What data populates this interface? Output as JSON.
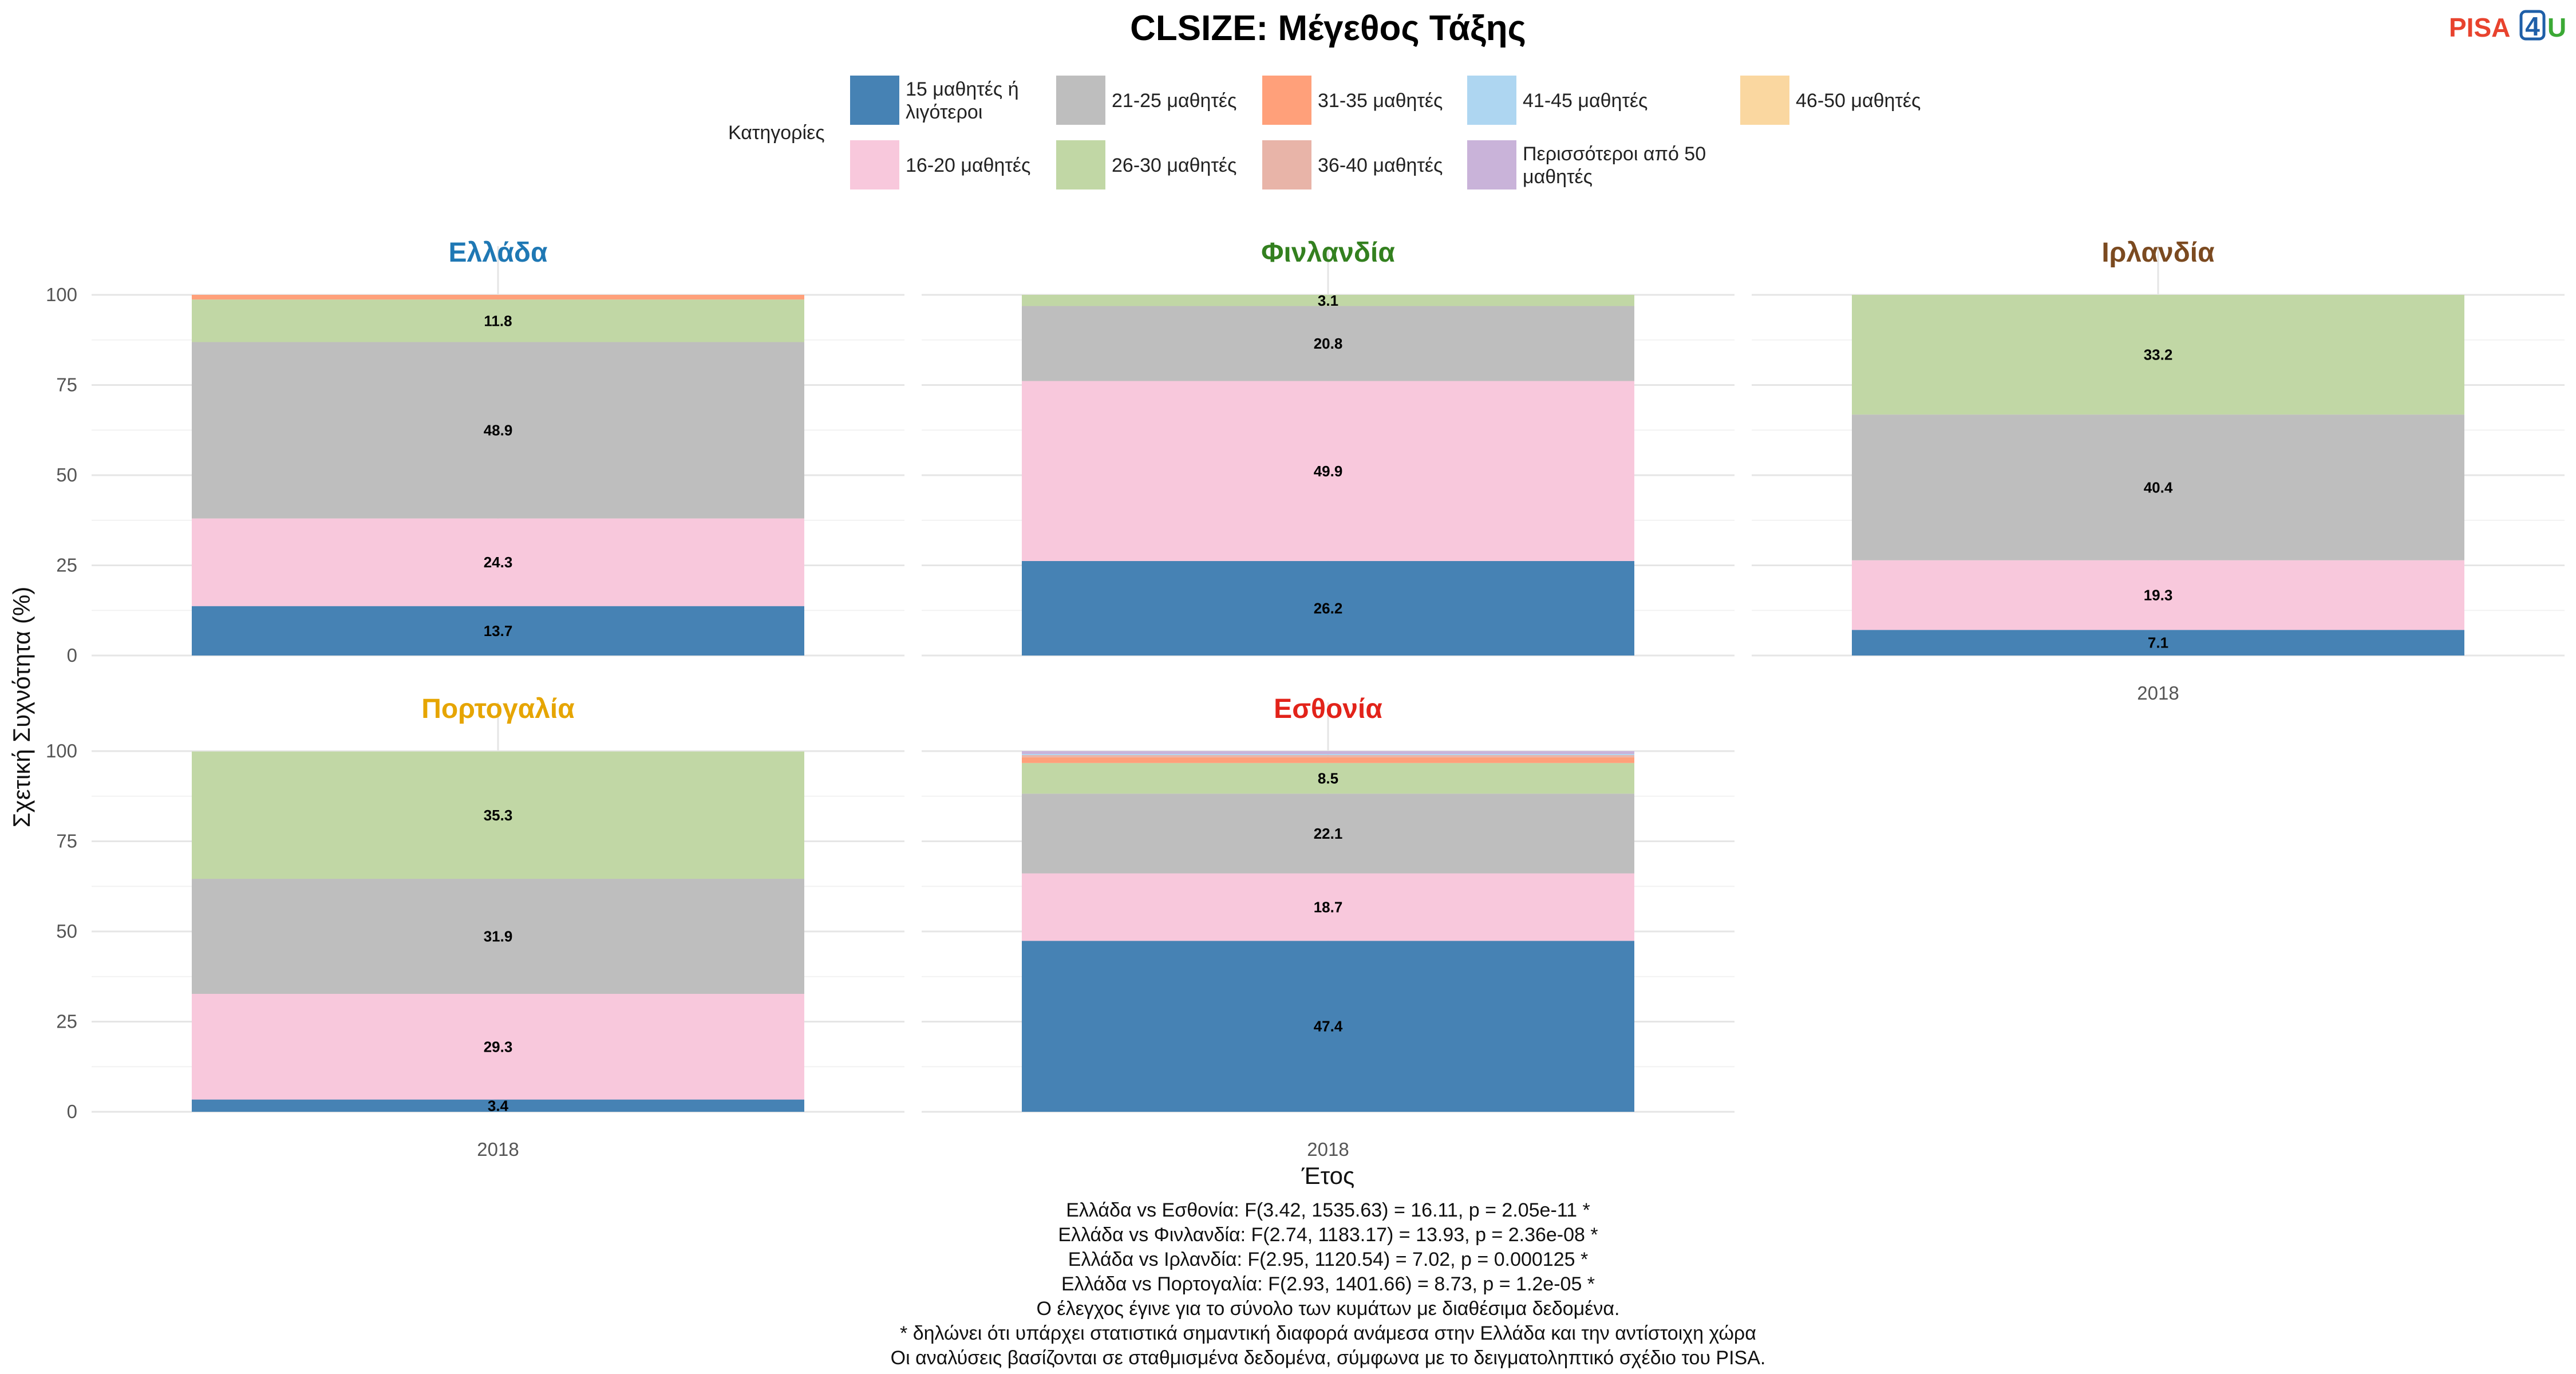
{
  "chart_data": {
    "type": "bar",
    "stacked": true,
    "title": "CLSIZE: Μέγεθος Τάξης",
    "logo": {
      "part1": "PISA",
      "part2": "4",
      "part3": "U"
    },
    "xlabel": "Έτος",
    "ylabel": "Σχετική Συχνότητα (%)",
    "ylim": [
      0,
      100
    ],
    "yticks": [
      0,
      25,
      50,
      75,
      100
    ],
    "legend": {
      "title": "Κατηγορίες",
      "placement": "top",
      "items": [
        {
          "label": "15 μαθητές ή λιγότεροι",
          "color": "#4682B4"
        },
        {
          "label": "16-20 μαθητές",
          "color": "#F8C8DC"
        },
        {
          "label": "21-25 μαθητές",
          "color": "#BEBEBE"
        },
        {
          "label": "26-30 μαθητές",
          "color": "#C1D7A5"
        },
        {
          "label": "31-35 μαθητές",
          "color": "#FFA07A"
        },
        {
          "label": "36-40 μαθητές",
          "color": "#E8B4A8"
        },
        {
          "label": "41-45 μαθητές",
          "color": "#AED6F1"
        },
        {
          "label": "Περισσότεροι από 50 μαθητές",
          "color": "#C9B3D9"
        },
        {
          "label": "46-50 μαθητές",
          "color": "#FAD7A0"
        }
      ]
    },
    "facets": [
      {
        "name": "Ελλάδα",
        "color": "#1F78B4",
        "x": [
          "2018"
        ],
        "segments": [
          {
            "category": "15 μαθητές ή λιγότεροι",
            "value": 13.7,
            "label": "13.7"
          },
          {
            "category": "16-20 μαθητές",
            "value": 24.3,
            "label": "24.3"
          },
          {
            "category": "21-25 μαθητές",
            "value": 48.9,
            "label": "48.9"
          },
          {
            "category": "26-30 μαθητές",
            "value": 11.8,
            "label": "11.8"
          },
          {
            "category": "31-35 μαθητές",
            "value": 1.3,
            "label": ""
          }
        ]
      },
      {
        "name": "Φινλανδία",
        "color": "#33801F",
        "x": [
          "2018"
        ],
        "segments": [
          {
            "category": "15 μαθητές ή λιγότεροι",
            "value": 26.2,
            "label": "26.2"
          },
          {
            "category": "16-20 μαθητές",
            "value": 49.9,
            "label": "49.9"
          },
          {
            "category": "21-25 μαθητές",
            "value": 20.8,
            "label": "20.8"
          },
          {
            "category": "26-30 μαθητές",
            "value": 3.1,
            "label": "3.1"
          }
        ]
      },
      {
        "name": "Ιρλανδία",
        "color": "#7B4A20",
        "x": [
          "2018"
        ],
        "segments": [
          {
            "category": "15 μαθητές ή λιγότεροι",
            "value": 7.1,
            "label": "7.1"
          },
          {
            "category": "16-20 μαθητές",
            "value": 19.3,
            "label": "19.3"
          },
          {
            "category": "21-25 μαθητές",
            "value": 40.4,
            "label": "40.4"
          },
          {
            "category": "26-30 μαθητές",
            "value": 33.2,
            "label": "33.2"
          }
        ]
      },
      {
        "name": "Πορτογαλία",
        "color": "#E6A500",
        "x": [
          "2018"
        ],
        "segments": [
          {
            "category": "15 μαθητές ή λιγότεροι",
            "value": 3.4,
            "label": "3.4"
          },
          {
            "category": "16-20 μαθητές",
            "value": 29.3,
            "label": "29.3"
          },
          {
            "category": "21-25 μαθητές",
            "value": 31.9,
            "label": "31.9"
          },
          {
            "category": "26-30 μαθητές",
            "value": 35.3,
            "label": "35.3"
          }
        ]
      },
      {
        "name": "Εσθονία",
        "color": "#E2231A",
        "x": [
          "2018"
        ],
        "segments": [
          {
            "category": "15 μαθητές ή λιγότεροι",
            "value": 47.4,
            "label": "47.4"
          },
          {
            "category": "16-20 μαθητές",
            "value": 18.7,
            "label": "18.7"
          },
          {
            "category": "21-25 μαθητές",
            "value": 22.1,
            "label": "22.1"
          },
          {
            "category": "26-30 μαθητές",
            "value": 8.5,
            "label": "8.5"
          },
          {
            "category": "31-35 μαθητές",
            "value": 1.6,
            "label": ""
          },
          {
            "category": "36-40 μαθητές",
            "value": 0.6,
            "label": ""
          },
          {
            "category": "41-45 μαθητές",
            "value": 0.3,
            "label": ""
          },
          {
            "category": "Περισσότεροι από 50 μαθητές",
            "value": 0.8,
            "label": ""
          }
        ]
      }
    ],
    "caption_lines": [
      "Ελλάδα vs Εσθονία: F(3.42, 1535.63) = 16.11, p = 2.05e-11 *",
      "Ελλάδα vs Φινλανδία: F(2.74, 1183.17) = 13.93, p = 2.36e-08 *",
      "Ελλάδα vs Ιρλανδία: F(2.95, 1120.54) = 7.02, p = 0.000125 *",
      "Ελλάδα vs Πορτογαλία: F(2.93, 1401.66) = 8.73, p = 1.2e-05 *",
      "Ο έλεγχος έγινε για το σύνολο των κυμάτων με διαθέσιμα δεδομένα.",
      "* δηλώνει ότι υπάρχει στατιστικά σημαντική διαφορά ανάμεσα στην Ελλάδα και την αντίστοιχη χώρα",
      "Οι αναλύσεις βασίζονται σε σταθμισμένα δεδομένα, σύμφωνα με το δειγματοληπτικό σχέδιο του PISA."
    ]
  }
}
